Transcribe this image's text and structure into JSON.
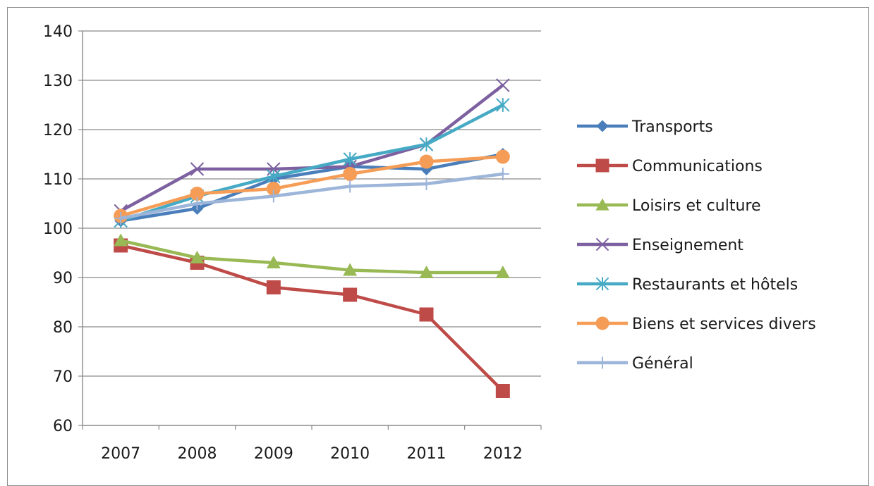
{
  "chart_data": {
    "type": "line",
    "title": "",
    "xlabel": "",
    "ylabel": "",
    "categories": [
      "2007",
      "2008",
      "2009",
      "2010",
      "2011",
      "2012"
    ],
    "ylim": [
      60,
      140
    ],
    "yticks": [
      60,
      70,
      80,
      90,
      100,
      110,
      120,
      130,
      140
    ],
    "grid": "horizontal",
    "legend_position": "right",
    "series": [
      {
        "name": "Transports",
        "color": "#4a7ebb",
        "marker": "diamond",
        "values": [
          101.5,
          104,
          110,
          112.5,
          112,
          115
        ]
      },
      {
        "name": "Communications",
        "color": "#be4b48",
        "marker": "square",
        "values": [
          96.5,
          93,
          88,
          86.5,
          82.5,
          67
        ]
      },
      {
        "name": "Loisirs et culture",
        "color": "#98b954",
        "marker": "triangle",
        "values": [
          97.5,
          94,
          93,
          91.5,
          91,
          91
        ]
      },
      {
        "name": "Enseignement",
        "color": "#7d60a0",
        "marker": "x",
        "values": [
          103.5,
          112,
          112,
          112.5,
          117,
          129
        ]
      },
      {
        "name": "Restaurants et hôtels",
        "color": "#46aac5",
        "marker": "asterisk",
        "values": [
          101.5,
          106.5,
          110.5,
          114,
          117,
          125
        ]
      },
      {
        "name": "Biens et services divers",
        "color": "#f59d56",
        "marker": "circle",
        "values": [
          102.5,
          107,
          108,
          111,
          113.5,
          114.5
        ]
      },
      {
        "name": "Général",
        "color": "#9cb5d9",
        "marker": "plus",
        "values": [
          102,
          105,
          106.5,
          108.5,
          109,
          111
        ]
      }
    ]
  }
}
